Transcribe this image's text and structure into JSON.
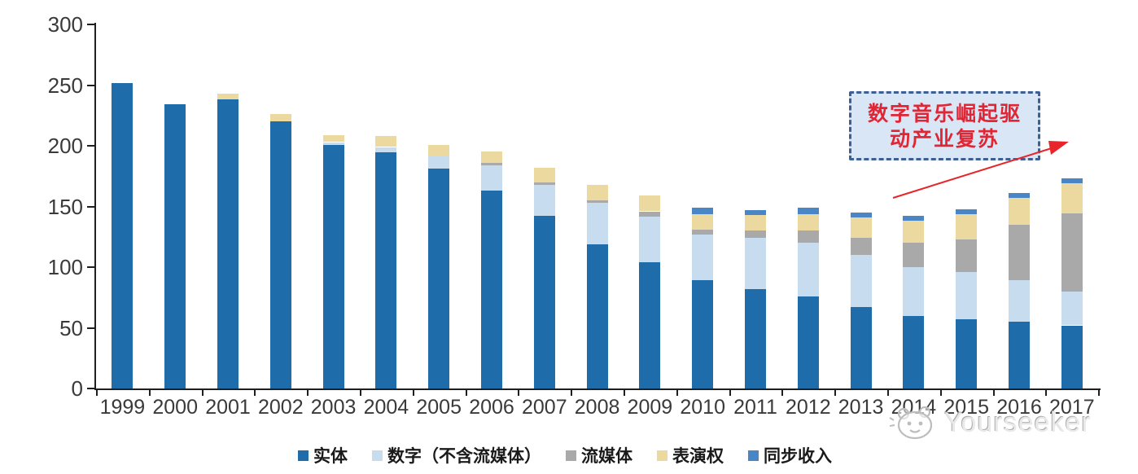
{
  "chart_data": {
    "type": "bar",
    "stacked": true,
    "title": "",
    "xlabel": "",
    "ylabel": "",
    "categories": [
      "1999",
      "2000",
      "2001",
      "2002",
      "2003",
      "2004",
      "2005",
      "2006",
      "2007",
      "2008",
      "2009",
      "2010",
      "2011",
      "2012",
      "2013",
      "2014",
      "2015",
      "2016",
      "2017"
    ],
    "series": [
      {
        "key": "physical",
        "name": "实体",
        "color": "#1f6cab",
        "values": [
          252,
          234,
          238,
          220,
          201,
          195,
          181,
          163,
          142,
          119,
          104,
          89,
          82,
          76,
          67,
          60,
          57,
          55,
          52
        ]
      },
      {
        "key": "digital-excl-streaming",
        "name": "数字（不含流媒体）",
        "color": "#c8dcf0",
        "values": [
          0,
          0,
          0,
          0,
          2,
          4,
          11,
          21,
          26,
          34,
          38,
          38,
          42,
          44,
          43,
          40,
          39,
          34,
          28
        ]
      },
      {
        "key": "streaming",
        "name": "流媒体",
        "color": "#a9a9a9",
        "values": [
          0,
          0,
          0,
          0,
          0,
          0,
          0,
          2,
          2,
          2,
          4,
          4,
          6,
          10,
          14,
          20,
          27,
          46,
          64
        ]
      },
      {
        "key": "performance-rights",
        "name": "表演权",
        "color": "#ebd9a0",
        "values": [
          0,
          0,
          5,
          6,
          6,
          9,
          9,
          9,
          12,
          13,
          13,
          13,
          13,
          14,
          17,
          18,
          21,
          22,
          25
        ]
      },
      {
        "key": "sync-revenue",
        "name": "同步收入",
        "color": "#4a86c6",
        "values": [
          0,
          0,
          0,
          0,
          0,
          0,
          0,
          0,
          0,
          0,
          0,
          5,
          4,
          5,
          4,
          4,
          4,
          4,
          4
        ]
      }
    ],
    "ylim": [
      0,
      300
    ],
    "yticks": [
      0,
      50,
      100,
      150,
      200,
      250,
      300
    ],
    "grid": false,
    "legend_position": "bottom"
  },
  "annotation": {
    "line1": "数字音乐崛起驱",
    "line2": "动产业复苏",
    "text_color": "#e02535",
    "box_fill": "#d9e6f5",
    "box_border_color": "#3d5f94",
    "arrow_color": "#e8252a"
  },
  "watermark": {
    "text": "Yourseeker",
    "color": "#c2c2c2"
  }
}
